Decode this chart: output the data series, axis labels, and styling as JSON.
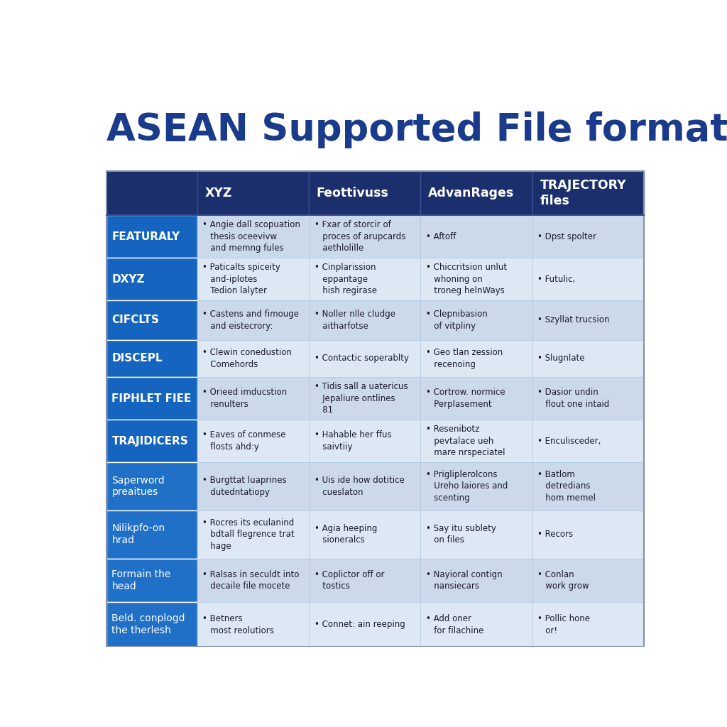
{
  "title": "ASEAN Supported File formats",
  "title_color": "#1a3a8c",
  "header_bg": "#1a2f6b",
  "header_text_color": "#ffffff",
  "row_label_bg_dark": "#1565c0",
  "row_label_bg_medium": "#2070c8",
  "row_label_text_bold_color": "#ffffff",
  "row_label_text_normal_color": "#1a3a8c",
  "cell_bg_even": "#ccd9ea",
  "cell_bg_odd": "#dde8f4",
  "body_text_color": "#1a1a2e",
  "border_color": "#8090b0",
  "columns": [
    "XYZ",
    "Feottivuss",
    "AdvanRages",
    "TRAJECTORY\nfiles"
  ],
  "rows": [
    {
      "label": "FEATURALY",
      "label_bold": true,
      "cells": [
        "Angie dall scopuation\nthesis oceevivw\nand memng fules",
        "Fxar of storcir of\nproces of arupcards\naethlolille",
        "Aftoff",
        "Dpst spolter"
      ]
    },
    {
      "label": "DXYZ",
      "label_bold": true,
      "cells": [
        "Paticalts spiceity\nand-iplotes\nTedion lalyter",
        "Cinplarission\neppantage\nhish regirase",
        "Chiccritsion unlut\nwhoning on\ntroneg helnWays",
        "Futulic,"
      ]
    },
    {
      "label": "CIFCLTS",
      "label_bold": true,
      "cells": [
        "Castens and fimouge\nand eistecrory:",
        "Noller nlle cludge\naitharfotse",
        "Clepnibasion\nof vitpliny",
        "Szyllat trucsion"
      ]
    },
    {
      "label": "DISCEPL",
      "label_bold": true,
      "cells": [
        "Clewin conedustion\nComehords",
        "Contactic soperablty",
        "Geo tlan zession\nrecenoing",
        "Slugnlate"
      ]
    },
    {
      "label": "FIPHLET FIEE",
      "label_bold": true,
      "cells": [
        "Orieed imducstion\nrenulters",
        "Tidis sall a uatericus\nJepaliure ontlines\n81",
        "Cortrow. normice\nPerplasement",
        "Dasior undin\nflout one intaid"
      ]
    },
    {
      "label": "TRAJIDICERS",
      "label_bold": true,
      "cells": [
        "Eaves of conmese\nflosts ahd:y",
        "Hahable her ffus\nsaivtiiy",
        "Resenibotz\npevtalace ueh\nmare nrspeciatel",
        "Enculisceder,"
      ]
    },
    {
      "label": "Saperword\npreaitues",
      "label_bold": false,
      "cells": [
        "Burgttat luaprines\ndutedntatiopy",
        "Uis ide how dotitice\ncueslaton",
        "Prigliplerolcons\nUreho laiores and\nscenting",
        "Batlom\ndetredians\nhom memel"
      ]
    },
    {
      "label": "Nilikpfo-on\nhrad",
      "label_bold": false,
      "cells": [
        "Rocres its eculanind\nbdtall flegrence trat\nhage",
        "Agia heeping\nsioneralcs",
        "Say itu sublety\non files",
        "Recors"
      ]
    },
    {
      "label": "Formain the\nhead",
      "label_bold": false,
      "cells": [
        "Ralsas in seculdt into\ndecaile file mocete",
        "Coplictor off or\ntostics",
        "Nayioral contign\nnansiecars",
        "Conlan\nwork grow"
      ]
    },
    {
      "label": "Beld. conplogd\nthe therlesh",
      "label_bold": false,
      "cells": [
        "Betners\nmost reolutiors",
        "Connet: ain reeping",
        "Add oner\nfor filachine",
        "Pollic hone\nor!"
      ]
    }
  ]
}
